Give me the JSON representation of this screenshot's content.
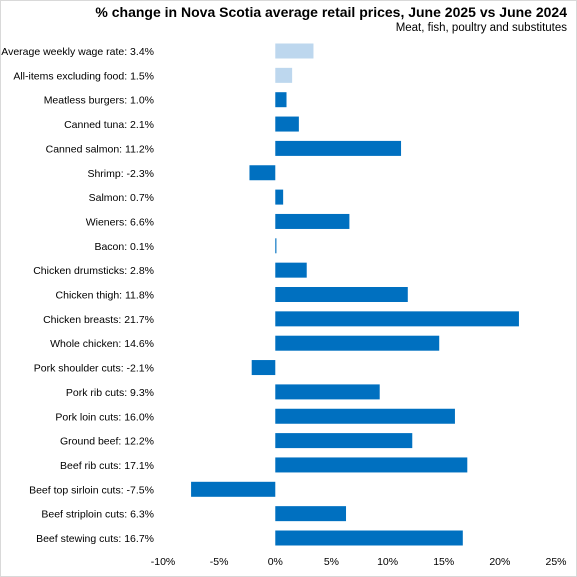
{
  "chart_data": {
    "type": "bar",
    "orientation": "horizontal",
    "title": "% change in Nova Scotia average retail prices, June 2025 vs June 2024",
    "subtitle": "Meat,  fish, poultry and substitutes",
    "xlim": [
      -10,
      25
    ],
    "xticks": [
      -10,
      -5,
      0,
      5,
      10,
      15,
      20,
      25
    ],
    "xtick_suffix": "%",
    "grid": false,
    "colors": {
      "highlight": "#bdd7ee",
      "main": "#0070c0"
    },
    "bars": [
      {
        "label": "Average weekly wage rate: 3.4%",
        "value": 3.4,
        "highlight": true
      },
      {
        "label": "All-items excluding food: 1.5%",
        "value": 1.5,
        "highlight": true
      },
      {
        "label": "Meatless burgers: 1.0%",
        "value": 1.0,
        "highlight": false
      },
      {
        "label": "Canned tuna: 2.1%",
        "value": 2.1,
        "highlight": false
      },
      {
        "label": "Canned salmon: 11.2%",
        "value": 11.2,
        "highlight": false
      },
      {
        "label": "Shrimp: -2.3%",
        "value": -2.3,
        "highlight": false
      },
      {
        "label": "Salmon: 0.7%",
        "value": 0.7,
        "highlight": false
      },
      {
        "label": "Wieners: 6.6%",
        "value": 6.6,
        "highlight": false
      },
      {
        "label": "Bacon: 0.1%",
        "value": 0.1,
        "highlight": false
      },
      {
        "label": "Chicken drumsticks: 2.8%",
        "value": 2.8,
        "highlight": false
      },
      {
        "label": "Chicken thigh: 11.8%",
        "value": 11.8,
        "highlight": false
      },
      {
        "label": "Chicken breasts: 21.7%",
        "value": 21.7,
        "highlight": false
      },
      {
        "label": "Whole chicken: 14.6%",
        "value": 14.6,
        "highlight": false
      },
      {
        "label": "Pork shoulder cuts: -2.1%",
        "value": -2.1,
        "highlight": false
      },
      {
        "label": "Pork rib cuts: 9.3%",
        "value": 9.3,
        "highlight": false
      },
      {
        "label": "Pork loin cuts: 16.0%",
        "value": 16.0,
        "highlight": false
      },
      {
        "label": "Ground beef: 12.2%",
        "value": 12.2,
        "highlight": false
      },
      {
        "label": "Beef rib cuts: 17.1%",
        "value": 17.1,
        "highlight": false
      },
      {
        "label": "Beef top sirloin cuts: -7.5%",
        "value": -7.5,
        "highlight": false
      },
      {
        "label": "Beef striploin cuts: 6.3%",
        "value": 6.3,
        "highlight": false
      },
      {
        "label": "Beef stewing cuts: 16.7%",
        "value": 16.7,
        "highlight": false
      }
    ]
  }
}
